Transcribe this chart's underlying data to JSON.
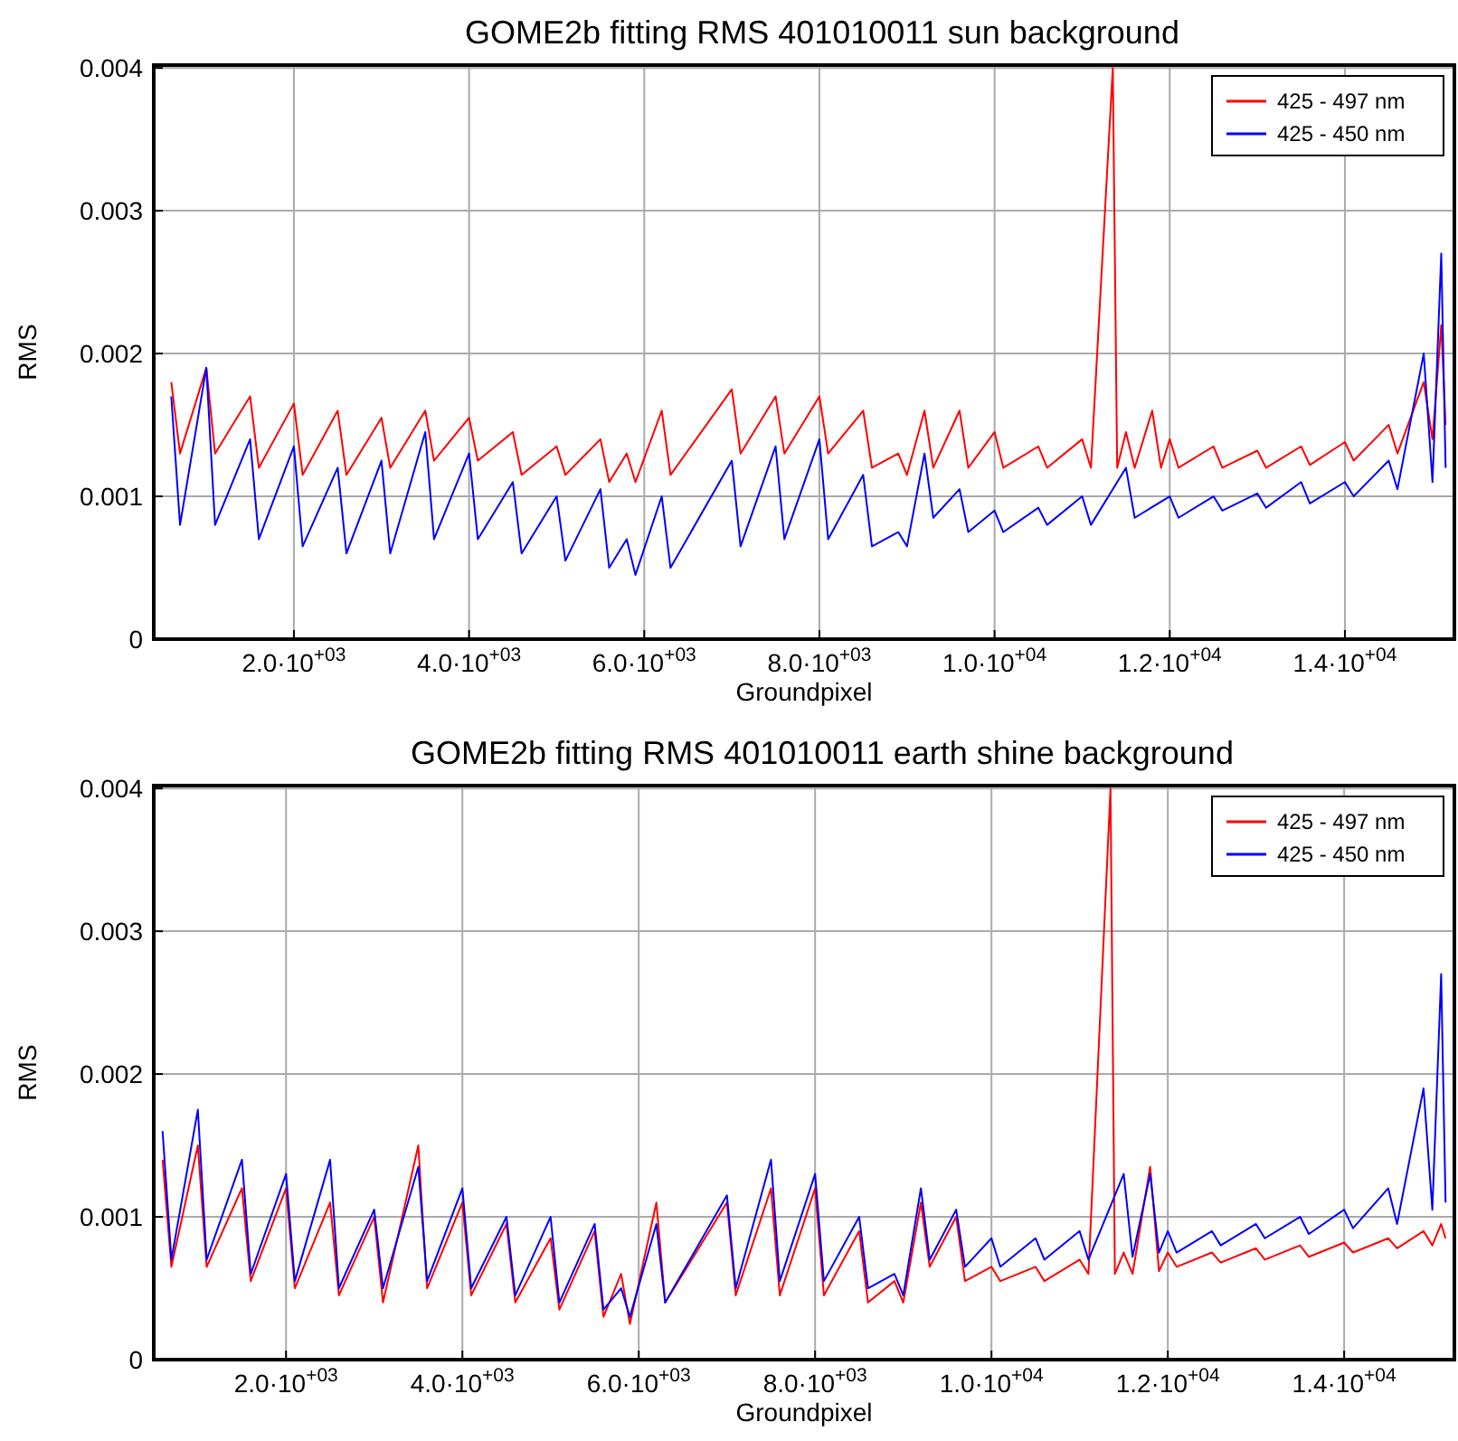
{
  "chart_data": [
    {
      "type": "line",
      "title": "GOME2b fitting RMS 401010011 sun background",
      "xlabel": "Groundpixel",
      "ylabel": "RMS",
      "xlim": [
        400,
        15250
      ],
      "ylim": [
        0,
        0.00402
      ],
      "xticks": [
        {
          "value": 2000,
          "label": "2.0·10$^{+03}$"
        },
        {
          "value": 4000,
          "label": "4.0·10$^{+03}$"
        },
        {
          "value": 6000,
          "label": "6.0·10$^{+03}$"
        },
        {
          "value": 8000,
          "label": "8.0·10$^{+03}$"
        },
        {
          "value": 10000,
          "label": "1.0·10$^{+04}$"
        },
        {
          "value": 12000,
          "label": "1.2·10$^{+04}$"
        },
        {
          "value": 14000,
          "label": "1.4·10$^{+04}$"
        }
      ],
      "yticks": [
        0,
        0.001,
        0.002,
        0.003,
        0.004
      ],
      "grid": true,
      "legend": "top right",
      "series": [
        {
          "name": "425 - 497 nm",
          "color": "#ff0000",
          "x": [
            600,
            700,
            1000,
            1100,
            1500,
            1600,
            2000,
            2100,
            2500,
            2600,
            3000,
            3100,
            3500,
            3600,
            4000,
            4100,
            4500,
            4600,
            5000,
            5100,
            5500,
            5600,
            5800,
            5900,
            6200,
            6300,
            7000,
            7100,
            7500,
            7600,
            8000,
            8100,
            8500,
            8600,
            8900,
            9000,
            9200,
            9300,
            9600,
            9700,
            10000,
            10100,
            10500,
            10600,
            11000,
            11100,
            11350,
            11400,
            11500,
            11600,
            11800,
            11900,
            12000,
            12100,
            12500,
            12600,
            13000,
            13100,
            13500,
            13600,
            14000,
            14100,
            14500,
            14600,
            14900,
            15000,
            15100,
            15150
          ],
          "values": [
            0.0018,
            0.0013,
            0.0019,
            0.0013,
            0.0017,
            0.0012,
            0.00165,
            0.00115,
            0.0016,
            0.00115,
            0.00155,
            0.0012,
            0.0016,
            0.00125,
            0.00155,
            0.00125,
            0.00145,
            0.00115,
            0.00135,
            0.00115,
            0.0014,
            0.0011,
            0.0013,
            0.0011,
            0.0016,
            0.00115,
            0.00175,
            0.0013,
            0.0017,
            0.0013,
            0.0017,
            0.0013,
            0.0016,
            0.0012,
            0.0013,
            0.00115,
            0.0016,
            0.0012,
            0.0016,
            0.0012,
            0.00145,
            0.0012,
            0.00135,
            0.0012,
            0.0014,
            0.0012,
            0.004,
            0.0012,
            0.00145,
            0.0012,
            0.0016,
            0.0012,
            0.0014,
            0.0012,
            0.00135,
            0.0012,
            0.00132,
            0.0012,
            0.00135,
            0.00122,
            0.00138,
            0.00125,
            0.0015,
            0.0013,
            0.0018,
            0.0014,
            0.0022,
            0.0015
          ]
        },
        {
          "name": "425 - 450 nm",
          "color": "#0000ff",
          "x": [
            600,
            700,
            1000,
            1100,
            1500,
            1600,
            2000,
            2100,
            2500,
            2600,
            3000,
            3100,
            3500,
            3600,
            4000,
            4100,
            4500,
            4600,
            5000,
            5100,
            5500,
            5600,
            5800,
            5900,
            6200,
            6300,
            7000,
            7100,
            7500,
            7600,
            8000,
            8100,
            8500,
            8600,
            8900,
            9000,
            9200,
            9300,
            9600,
            9700,
            10000,
            10100,
            10500,
            10600,
            11000,
            11100,
            11500,
            11600,
            12000,
            12100,
            12500,
            12600,
            13000,
            13100,
            13500,
            13600,
            14000,
            14100,
            14500,
            14600,
            14900,
            15000,
            15100,
            15150
          ],
          "values": [
            0.0017,
            0.0008,
            0.0019,
            0.0008,
            0.0014,
            0.0007,
            0.00135,
            0.00065,
            0.0012,
            0.0006,
            0.00125,
            0.0006,
            0.00145,
            0.0007,
            0.0013,
            0.0007,
            0.0011,
            0.0006,
            0.001,
            0.00055,
            0.00105,
            0.0005,
            0.0007,
            0.00045,
            0.001,
            0.0005,
            0.00125,
            0.00065,
            0.00135,
            0.0007,
            0.0014,
            0.0007,
            0.00115,
            0.00065,
            0.00075,
            0.00065,
            0.0013,
            0.00085,
            0.00105,
            0.00075,
            0.0009,
            0.00075,
            0.00092,
            0.0008,
            0.001,
            0.0008,
            0.0012,
            0.00085,
            0.001,
            0.00085,
            0.001,
            0.0009,
            0.00102,
            0.00092,
            0.0011,
            0.00095,
            0.0011,
            0.001,
            0.00125,
            0.00105,
            0.002,
            0.0011,
            0.0027,
            0.0012
          ]
        }
      ]
    },
    {
      "type": "line",
      "title": "GOME2b fitting RMS 401010011 earth shine background",
      "xlabel": "Groundpixel",
      "ylabel": "RMS",
      "xlim": [
        500,
        15250
      ],
      "ylim": [
        0,
        0.00402
      ],
      "xticks": [
        {
          "value": 2000,
          "label": "2.0·10$^{+03}$"
        },
        {
          "value": 4000,
          "label": "4.0·10$^{+03}$"
        },
        {
          "value": 6000,
          "label": "6.0·10$^{+03}$"
        },
        {
          "value": 8000,
          "label": "8.0·10$^{+03}$"
        },
        {
          "value": 10000,
          "label": "1.0·10$^{+04}$"
        },
        {
          "value": 12000,
          "label": "1.2·10$^{+04}$"
        },
        {
          "value": 14000,
          "label": "1.4·10$^{+04}$"
        }
      ],
      "yticks": [
        0,
        0.001,
        0.002,
        0.003,
        0.004
      ],
      "grid": true,
      "legend": "top right",
      "series": [
        {
          "name": "425 - 497 nm",
          "color": "#ff0000",
          "x": [
            600,
            700,
            1000,
            1100,
            1500,
            1600,
            2000,
            2100,
            2500,
            2600,
            3000,
            3100,
            3500,
            3600,
            4000,
            4100,
            4500,
            4600,
            5000,
            5100,
            5500,
            5600,
            5800,
            5900,
            6200,
            6300,
            7000,
            7100,
            7500,
            7600,
            8000,
            8100,
            8500,
            8600,
            8900,
            9000,
            9200,
            9300,
            9600,
            9700,
            10000,
            10100,
            10500,
            10600,
            11000,
            11100,
            11350,
            11400,
            11500,
            11600,
            11800,
            11900,
            12000,
            12100,
            12500,
            12600,
            13000,
            13100,
            13500,
            13600,
            14000,
            14100,
            14500,
            14600,
            14900,
            15000,
            15100,
            15150
          ],
          "values": [
            0.0014,
            0.00065,
            0.0015,
            0.00065,
            0.0012,
            0.00055,
            0.0012,
            0.0005,
            0.0011,
            0.00045,
            0.001,
            0.0004,
            0.0015,
            0.0005,
            0.0011,
            0.00045,
            0.00095,
            0.0004,
            0.00085,
            0.00035,
            0.0009,
            0.0003,
            0.0006,
            0.00025,
            0.0011,
            0.0004,
            0.0011,
            0.00045,
            0.0012,
            0.00045,
            0.0012,
            0.00045,
            0.0009,
            0.0004,
            0.00055,
            0.0004,
            0.0011,
            0.00065,
            0.001,
            0.00055,
            0.00065,
            0.00055,
            0.00065,
            0.00055,
            0.0007,
            0.0006,
            0.004,
            0.0006,
            0.00075,
            0.0006,
            0.00135,
            0.00062,
            0.00075,
            0.00065,
            0.00075,
            0.00068,
            0.00078,
            0.0007,
            0.0008,
            0.00072,
            0.00082,
            0.00075,
            0.00085,
            0.00078,
            0.0009,
            0.0008,
            0.00095,
            0.00085
          ]
        },
        {
          "name": "425 - 450 nm",
          "color": "#0000ff",
          "x": [
            600,
            700,
            1000,
            1100,
            1500,
            1600,
            2000,
            2100,
            2500,
            2600,
            3000,
            3100,
            3500,
            3600,
            4000,
            4100,
            4500,
            4600,
            5000,
            5100,
            5500,
            5600,
            5800,
            5900,
            6200,
            6300,
            7000,
            7100,
            7500,
            7600,
            8000,
            8100,
            8500,
            8600,
            8900,
            9000,
            9200,
            9300,
            9600,
            9700,
            10000,
            10100,
            10500,
            10600,
            11000,
            11100,
            11500,
            11600,
            11800,
            11900,
            12000,
            12100,
            12500,
            12600,
            13000,
            13100,
            13500,
            13600,
            14000,
            14100,
            14500,
            14600,
            14900,
            15000,
            15100,
            15150
          ],
          "values": [
            0.0016,
            0.0007,
            0.00175,
            0.0007,
            0.0014,
            0.0006,
            0.0013,
            0.00055,
            0.0014,
            0.0005,
            0.00105,
            0.0005,
            0.00135,
            0.00055,
            0.0012,
            0.0005,
            0.001,
            0.00045,
            0.001,
            0.0004,
            0.00095,
            0.00035,
            0.0005,
            0.0003,
            0.00095,
            0.0004,
            0.00115,
            0.0005,
            0.0014,
            0.00055,
            0.0013,
            0.00055,
            0.001,
            0.0005,
            0.0006,
            0.00045,
            0.0012,
            0.0007,
            0.00105,
            0.00065,
            0.00085,
            0.00065,
            0.00085,
            0.0007,
            0.0009,
            0.0007,
            0.0013,
            0.00072,
            0.0013,
            0.00075,
            0.0009,
            0.00075,
            0.0009,
            0.0008,
            0.00095,
            0.00085,
            0.001,
            0.00088,
            0.00105,
            0.00092,
            0.0012,
            0.00095,
            0.0019,
            0.00105,
            0.0027,
            0.0011
          ]
        }
      ]
    }
  ]
}
